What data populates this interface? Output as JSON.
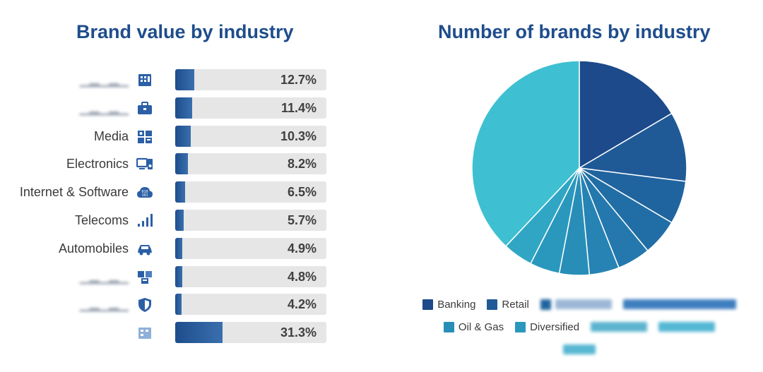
{
  "chart_data": [
    {
      "type": "bar",
      "title": "Brand value by industry",
      "orientation": "horizontal",
      "xlim": [
        0,
        100
      ],
      "categories": [
        "",
        "",
        "Media",
        "Electronics",
        "Internet & Software",
        "Telecoms",
        "Automobiles",
        "",
        "",
        ""
      ],
      "values": [
        12.7,
        11.4,
        10.3,
        8.2,
        6.5,
        5.7,
        4.9,
        4.8,
        4.2,
        31.3
      ],
      "value_labels": [
        "12.7%",
        "11.4%",
        "10.3%",
        "8.2%",
        "6.5%",
        "5.7%",
        "4.9%",
        "4.8%",
        "4.2%",
        "31.3%"
      ],
      "icons": [
        "building-icon",
        "briefcase-icon",
        "media-icon",
        "electronics-icon",
        "cloud-code-icon",
        "signal-icon",
        "car-icon",
        "boxes-icon",
        "shield-icon",
        "other-icon"
      ],
      "colors": {
        "bar": "#1e4d8c",
        "track": "#e6e6e6"
      }
    },
    {
      "type": "pie",
      "title": "Number of brands by industry",
      "slices": [
        {
          "name": "Banking",
          "value": 16.5,
          "color": "#1c4a8a"
        },
        {
          "name": "Retail",
          "value": 10.5,
          "color": "#1f5a97"
        },
        {
          "name": "",
          "value": 6.5,
          "color": "#20649f"
        },
        {
          "name": "",
          "value": 5.5,
          "color": "#216ea6"
        },
        {
          "name": "",
          "value": 5.0,
          "color": "#2478ad"
        },
        {
          "name": "",
          "value": 4.5,
          "color": "#2683b3"
        },
        {
          "name": "Oil & Gas",
          "value": 4.5,
          "color": "#288eb8"
        },
        {
          "name": "Diversified",
          "value": 4.5,
          "color": "#2a98bd"
        },
        {
          "name": "",
          "value": 4.5,
          "color": "#30a6c4"
        },
        {
          "name": "",
          "value": 38.0,
          "color": "#3ec0d2"
        }
      ],
      "legend_position": "bottom"
    }
  ],
  "legend": {
    "row1": [
      "Banking",
      "Retail"
    ],
    "row2": [
      "Oil & Gas",
      "Diversified"
    ]
  }
}
